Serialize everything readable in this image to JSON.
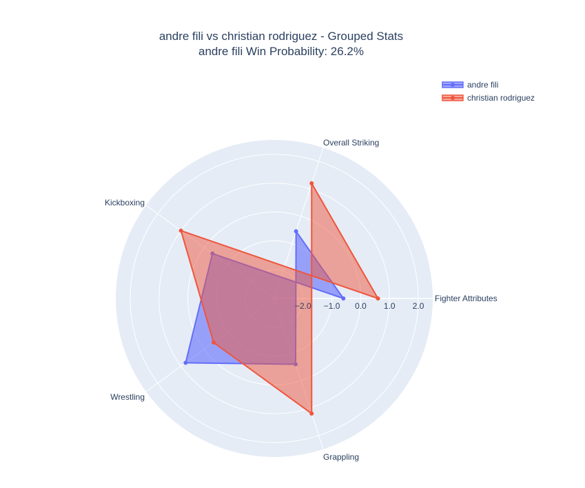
{
  "chart_data": {
    "type": "radar",
    "title": "andre fili vs christian rodriguez - Grouped Stats",
    "subtitle": "andre fili Win Probability: 26.2%",
    "categories": [
      "Fighter Attributes",
      "Overall Striking",
      "Grappling",
      "Wrestling",
      "Kickboxing"
    ],
    "radial_range": [
      -3.0,
      2.5
    ],
    "radial_ticks": [
      "−2.0",
      "−1.0",
      "0.0",
      "1.0",
      "2.0"
    ],
    "radial_tick_values": [
      -2,
      -1,
      0,
      1,
      2
    ],
    "grid": true,
    "legend_position": "top-right",
    "series": [
      {
        "name": "andre fili",
        "color": "#636efa",
        "fill": "rgba(99,110,250,0.6)",
        "values": [
          -0.6,
          -0.55,
          -0.6,
          0.8,
          -0.35
        ]
      },
      {
        "name": "christian rodriguez",
        "color": "#ef553b",
        "fill": "rgba(239,85,59,0.5)",
        "values": [
          0.6,
          1.2,
          1.2,
          -0.4,
          1.0
        ]
      }
    ]
  }
}
